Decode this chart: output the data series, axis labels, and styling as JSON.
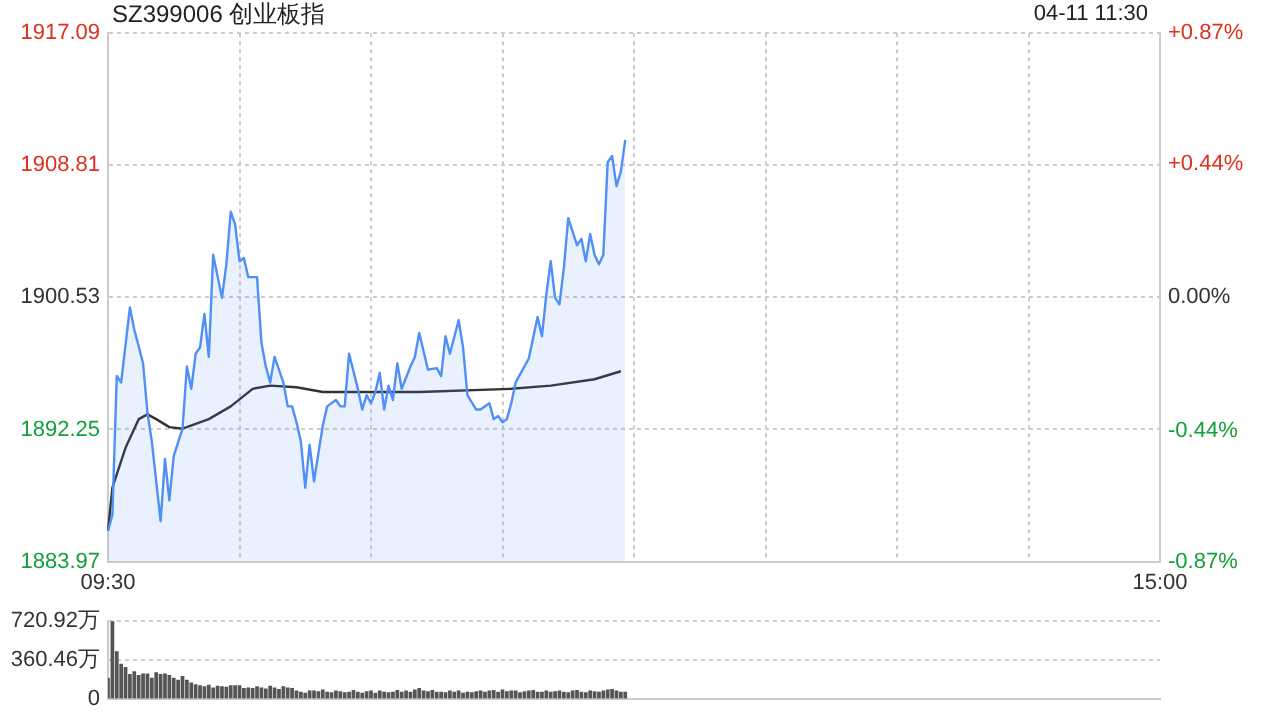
{
  "chart_data": [
    {
      "type": "line",
      "title": "SZ399006 创业板指",
      "annotations": [
        "04-11 11:30"
      ],
      "categories": [
        "09:30",
        null,
        null,
        null,
        null,
        null,
        null,
        null,
        null,
        null,
        null,
        null,
        null,
        null,
        null,
        null,
        null,
        null,
        null,
        null,
        null,
        null,
        null,
        null,
        null,
        null,
        null,
        null,
        null,
        null,
        null,
        null,
        null,
        null,
        null,
        null,
        null,
        null,
        null,
        null,
        null,
        null,
        null,
        null,
        null,
        null,
        null,
        null,
        null,
        null,
        null,
        null,
        null,
        null,
        null,
        null,
        null,
        null,
        null,
        null,
        null,
        null,
        null,
        null,
        null,
        null,
        null,
        null,
        null,
        null,
        null,
        null,
        null,
        null,
        null,
        null,
        null,
        null,
        null,
        null,
        null,
        null,
        null,
        null,
        null,
        null,
        null,
        null,
        null,
        null,
        null,
        null,
        null,
        null,
        null,
        null,
        null,
        null,
        null,
        null,
        null,
        null,
        null,
        null,
        null,
        null,
        null,
        null,
        null,
        null,
        null,
        null,
        null,
        null,
        null,
        null,
        null,
        null,
        null,
        null,
        null,
        null,
        null,
        null,
        null,
        null,
        null,
        null,
        null,
        null,
        null,
        null,
        null,
        null,
        null,
        null,
        null,
        null,
        null,
        null,
        null,
        null,
        null,
        null,
        null,
        null,
        null,
        null,
        null,
        null,
        null,
        null,
        null,
        null,
        null,
        null,
        null,
        null,
        null,
        null,
        null,
        null,
        null,
        null,
        null,
        null,
        null,
        null,
        null,
        null,
        null,
        null,
        null,
        null,
        null,
        null,
        null,
        null,
        null,
        null,
        null,
        null,
        null,
        null,
        null,
        null,
        null,
        null,
        null,
        null,
        null,
        null,
        null,
        null,
        null,
        null,
        null,
        null,
        null,
        null,
        null,
        null,
        null,
        null,
        null,
        null,
        null,
        null,
        null,
        null,
        null,
        null,
        null,
        null,
        null,
        null,
        null,
        null,
        null,
        null,
        null,
        null,
        null,
        null,
        null,
        null,
        null,
        null,
        null,
        null,
        null,
        null,
        null,
        null,
        null,
        null,
        null,
        null,
        null,
        null,
        "15:00"
      ],
      "ylim": [
        1883.97,
        1917.09
      ],
      "yticks": [
        1883.97,
        1892.25,
        1900.53,
        1908.81,
        1917.09
      ],
      "y2lim": [
        -0.87,
        0.87
      ],
      "y2ticks": [
        {
          "value": -0.87,
          "label": "-0.87%"
        },
        {
          "value": -0.44,
          "label": "-0.44%"
        },
        {
          "value": 0,
          "label": "0.00%"
        },
        {
          "value": 0.44,
          "label": "+0.44%"
        },
        {
          "value": 0.87,
          "label": "+0.87%"
        }
      ],
      "grid": true,
      "legend": false,
      "series": [
        {
          "type": "area",
          "color": "#4f8ff7",
          "values": [
            1885.9,
            1886.9,
            1895.6,
            1895.2,
            null,
            1899.9,
            1898.5,
            null,
            1896.4,
            1893.3,
            1891.5,
            null,
            1886.5,
            1890.4,
            1887.8,
            1890.6,
            null,
            1892.3,
            1896.2,
            1894.8,
            1897.0,
            1897.4,
            1899.5,
            1896.8,
            1903.2,
            null,
            1900.5,
            1902.6,
            1905.9,
            1905.1,
            1902.8,
            1903.0,
            1901.8,
            null,
            1901.8,
            1897.7,
            1896.2,
            1895.2,
            1896.8,
            null,
            1895.2,
            1893.7,
            1893.7,
            1892.7,
            1891.5,
            1888.6,
            1891.3,
            1889.0,
            null,
            1892.5,
            1893.7,
            null,
            1894.1,
            1893.7,
            1893.7,
            1897.0,
            null,
            1894.8,
            1893.5,
            1894.4,
            1893.9,
            1894.6,
            1895.8,
            1893.5,
            1895.0,
            1894.1,
            1896.4,
            1894.8,
            null,
            1896.2,
            1896.8,
            1898.3,
            null,
            1896.0,
            null,
            1896.1,
            1895.6,
            1898.1,
            1897.0,
            null,
            1899.1,
            1897.4,
            1894.4,
            null,
            1893.5,
            1893.5,
            null,
            1893.9,
            1892.9,
            1893.1,
            1892.7,
            1892.9,
            1893.9,
            1895.2,
            null,
            1896.2,
            1896.7,
            null,
            1899.3,
            1898.1,
            1900.7,
            1902.8,
            1900.5,
            1900.1,
            1902.4,
            1905.5,
            null,
            1903.8,
            1904.2,
            1902.8,
            1904.5,
            1903.2,
            1902.6,
            1903.2,
            1909.0,
            1909.4,
            1907.5,
            1908.4,
            1910.4,
            null,
            null,
            null,
            null,
            null,
            null,
            null,
            null,
            null,
            null,
            null,
            null,
            null,
            null,
            null,
            null,
            null,
            null,
            null,
            null,
            null,
            null,
            null,
            null,
            null,
            null,
            null,
            null,
            null,
            null,
            null,
            null,
            null,
            null,
            null,
            null,
            null,
            null,
            null,
            null,
            null,
            null,
            null,
            null,
            null,
            null,
            null,
            null,
            null,
            null,
            null,
            null,
            null,
            null,
            null,
            null,
            null,
            null,
            null,
            null,
            null,
            null,
            null,
            null,
            null,
            null,
            null,
            null,
            null,
            null,
            null,
            null,
            null,
            null,
            null,
            null,
            null,
            null,
            null,
            null,
            null,
            null,
            null,
            null,
            null,
            null,
            null,
            null,
            null,
            null,
            null,
            null,
            null,
            null,
            null,
            null,
            null,
            null,
            null,
            null,
            null,
            null,
            null,
            null,
            null,
            null,
            null,
            null,
            null,
            null,
            null,
            null,
            null,
            null,
            null,
            null,
            null,
            null,
            null,
            null,
            null,
            null
          ]
        },
        {
          "type": "line",
          "color": "#333333",
          "values": [
            1885.9,
            1888.6,
            null,
            null,
            1891.1,
            null,
            null,
            1892.9,
            null,
            1893.2,
            null,
            1892.9,
            null,
            null,
            1892.4,
            null,
            null,
            1892.3,
            null,
            null,
            null,
            null,
            null,
            1892.9,
            null,
            null,
            null,
            null,
            1893.7,
            null,
            null,
            null,
            null,
            1894.8,
            null,
            null,
            null,
            1895.0,
            null,
            null,
            null,
            null,
            null,
            1894.9,
            null,
            null,
            null,
            null,
            null,
            1894.6,
            null,
            null,
            null,
            null,
            null,
            null,
            null,
            null,
            null,
            null,
            null,
            1894.6,
            null,
            null,
            null,
            null,
            null,
            null,
            null,
            null,
            null,
            1894.6,
            null,
            null,
            null,
            null,
            null,
            null,
            null,
            null,
            null,
            null,
            null,
            null,
            null,
            null,
            null,
            null,
            null,
            null,
            null,
            null,
            1894.8,
            null,
            null,
            null,
            null,
            null,
            null,
            null,
            null,
            1895.0,
            null,
            null,
            null,
            null,
            null,
            null,
            null,
            null,
            null,
            1895.4,
            null,
            null,
            null,
            null,
            null,
            1895.9,
            null,
            null,
            null,
            null,
            null,
            null,
            null,
            null,
            null,
            null,
            null,
            null,
            null,
            null,
            null,
            null,
            null,
            null,
            null,
            null,
            null,
            null,
            null,
            null,
            null,
            null,
            null,
            null,
            null,
            null,
            null,
            null,
            null,
            null,
            null,
            null,
            null,
            null,
            null,
            null,
            null,
            null,
            null,
            null,
            null,
            null,
            null,
            null,
            null,
            null,
            null,
            null,
            null,
            null,
            null,
            null,
            null,
            null,
            null,
            null,
            null,
            null,
            null,
            null,
            null,
            null,
            null,
            null,
            null,
            null,
            null,
            null,
            null,
            null,
            null,
            null,
            null,
            null,
            null,
            null,
            null,
            null,
            null,
            null,
            null,
            null,
            null,
            null,
            null,
            null,
            null,
            null,
            null,
            null,
            null,
            null,
            null,
            null,
            null,
            null,
            null,
            null,
            null,
            null,
            null,
            null,
            null,
            null,
            null,
            null,
            null,
            null,
            null,
            null,
            null,
            null,
            null,
            null,
            null,
            null,
            null,
            null,
            null
          ]
        }
      ]
    },
    {
      "type": "bar",
      "ylim": [
        0,
        720.92
      ],
      "yticks": [
        0,
        {
          "value": 360.46,
          "label": "360.46万"
        },
        {
          "value": 720.92,
          "label": "720.92万"
        }
      ],
      "grid": "y",
      "tick_labels": "y",
      "legend": false,
      "color": "#555555",
      "categories": [
        null,
        null,
        null,
        null,
        null,
        null,
        null,
        null,
        null,
        null,
        null,
        null,
        null,
        null,
        null,
        null,
        null,
        null,
        null,
        null,
        null,
        null,
        null,
        null,
        null,
        null,
        null,
        null,
        null,
        null,
        null,
        null,
        null,
        null,
        null,
        null,
        null,
        null,
        null,
        null,
        null,
        null,
        null,
        null,
        null,
        null,
        null,
        null,
        null,
        null,
        null,
        null,
        null,
        null,
        null,
        null,
        null,
        null,
        null,
        null,
        null,
        null,
        null,
        null,
        null,
        null,
        null,
        null,
        null,
        null,
        null,
        null,
        null,
        null,
        null,
        null,
        null,
        null,
        null,
        null,
        null,
        null,
        null,
        null,
        null,
        null,
        null,
        null,
        null,
        null,
        null,
        null,
        null,
        null,
        null,
        null,
        null,
        null,
        null,
        null,
        null,
        null,
        null,
        null,
        null,
        null,
        null,
        null,
        null,
        null,
        null,
        null,
        null,
        null,
        null,
        null,
        null,
        null,
        null,
        null,
        null,
        null,
        null,
        null,
        null,
        null,
        null,
        null,
        null,
        null,
        null,
        null,
        null,
        null,
        null,
        null,
        null,
        null,
        null,
        null,
        null,
        null,
        null,
        null,
        null,
        null,
        null,
        null,
        null,
        null,
        null,
        null,
        null,
        null,
        null,
        null,
        null,
        null,
        null,
        null,
        null,
        null,
        null,
        null,
        null,
        null,
        null,
        null,
        null,
        null,
        null,
        null,
        null,
        null,
        null,
        null,
        null,
        null,
        null,
        null,
        null,
        null,
        null,
        null,
        null,
        null,
        null,
        null,
        null,
        null,
        null,
        null,
        null,
        null,
        null,
        null,
        null,
        null,
        null,
        null,
        null,
        null,
        null,
        null,
        null,
        null,
        null,
        null,
        null,
        null,
        null,
        null,
        null,
        null,
        null,
        null,
        null,
        null,
        null,
        null,
        null,
        null,
        null,
        null,
        null,
        null,
        null,
        null,
        null,
        null,
        null,
        null,
        null,
        null,
        null,
        null,
        null,
        null,
        null,
        null,
        null
      ],
      "values": [
        190,
        720,
        435,
        320,
        290,
        225,
        250,
        215,
        230,
        230,
        190,
        240,
        225,
        230,
        215,
        190,
        170,
        205,
        170,
        145,
        130,
        120,
        110,
        125,
        100,
        115,
        110,
        105,
        120,
        120,
        120,
        95,
        100,
        95,
        110,
        100,
        90,
        115,
        100,
        85,
        110,
        100,
        95,
        70,
        60,
        50,
        70,
        70,
        65,
        80,
        60,
        55,
        70,
        65,
        55,
        60,
        75,
        60,
        50,
        65,
        70,
        50,
        70,
        60,
        55,
        60,
        75,
        60,
        70,
        60,
        80,
        95,
        70,
        65,
        75,
        60,
        60,
        55,
        70,
        60,
        70,
        50,
        60,
        55,
        65,
        70,
        60,
        70,
        75,
        60,
        80,
        65,
        70,
        70,
        55,
        65,
        70,
        75,
        60,
        60,
        70,
        60,
        65,
        70,
        60,
        55,
        70,
        75,
        60,
        55,
        70,
        65,
        60,
        70,
        80,
        85,
        70,
        60,
        60,
        null,
        null,
        null,
        null,
        null,
        null,
        null,
        null,
        null,
        null,
        null,
        null,
        null,
        null,
        null,
        null,
        null,
        null,
        null,
        null,
        null,
        null,
        null,
        null,
        null,
        null,
        null,
        null,
        null,
        null,
        null,
        null,
        null,
        null,
        null,
        null,
        null,
        null,
        null,
        null,
        null,
        null,
        null,
        null,
        null,
        null,
        null,
        null,
        null,
        null,
        null,
        null,
        null,
        null,
        null,
        null,
        null,
        null,
        null,
        null,
        null,
        null,
        null,
        null,
        null,
        null,
        null,
        null,
        null,
        null,
        null,
        null,
        null,
        null,
        null,
        null,
        null,
        null,
        null,
        null,
        null,
        null,
        null,
        null,
        null,
        null,
        null,
        null,
        null,
        null,
        null,
        null,
        null,
        null,
        null,
        null,
        null,
        null,
        null,
        null,
        null,
        null,
        null,
        null,
        null,
        null,
        null,
        null,
        null,
        null,
        null,
        null,
        null,
        null,
        null,
        null,
        null,
        null,
        null,
        null,
        null,
        null
      ]
    }
  ]
}
